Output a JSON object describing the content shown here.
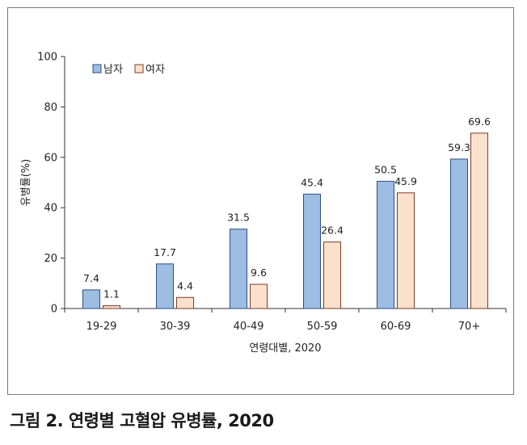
{
  "caption": "그림 2. 연령별 고혈압 유병률, 2020",
  "colors": {
    "male_fill": "#9dbde3",
    "male_stroke": "#2f4f7f",
    "female_fill": "#fbe1cc",
    "female_stroke": "#7a3b2b",
    "axis": "#333333"
  },
  "chart_data": {
    "type": "bar",
    "title": "",
    "xlabel": "연령대별, 2020",
    "ylabel": "유병률(%)",
    "ylim": [
      0,
      100
    ],
    "yticks": [
      0,
      20,
      40,
      60,
      80,
      100
    ],
    "categories": [
      "19-29",
      "30-39",
      "40-49",
      "50-59",
      "60-69",
      "70+"
    ],
    "series": [
      {
        "name": "남자",
        "values": [
          7.4,
          17.7,
          31.5,
          45.4,
          50.5,
          59.3
        ]
      },
      {
        "name": "여자",
        "values": [
          1.1,
          4.4,
          9.6,
          26.4,
          45.9,
          69.6
        ]
      }
    ],
    "legend_position": "top-left",
    "grid": false
  }
}
